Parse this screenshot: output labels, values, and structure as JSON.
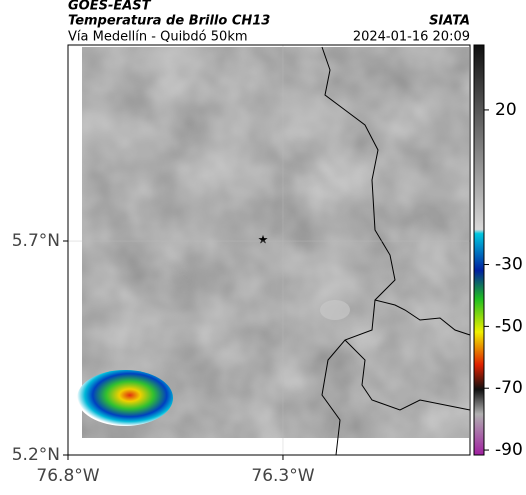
{
  "header": {
    "title": "GOES-EAST",
    "subtitle": "Temperatura de Brillo CH13",
    "route": "Vía Medellín - Quibdó 50km",
    "source": "SIATA",
    "timestamp": "2024-01-16 20:09"
  },
  "map": {
    "xlim": [
      -76.8,
      -75.865
    ],
    "ylim": [
      5.2,
      6.158
    ],
    "xticks": [
      {
        "value": -76.8,
        "label": "76.8°W"
      },
      {
        "value": -76.3,
        "label": "76.3°W"
      }
    ],
    "yticks": [
      {
        "value": 5.2,
        "label": "5.2°N"
      },
      {
        "value": 5.7,
        "label": "5.7°N"
      }
    ]
  },
  "colorbar": {
    "lim": [
      -91.6,
      41
    ],
    "ticks": [
      20,
      -30,
      -50,
      -70,
      -90
    ]
  }
}
